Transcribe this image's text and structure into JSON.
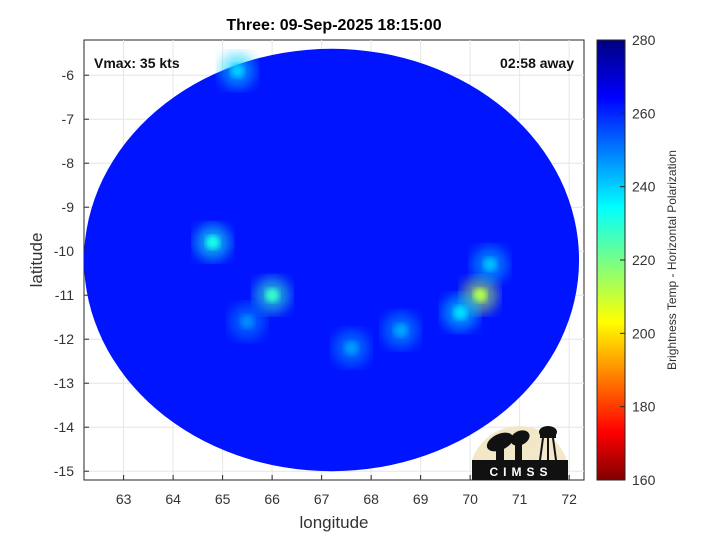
{
  "chart_data": {
    "type": "heatmap",
    "title": "Three: 09-Sep-2025 18:15:00",
    "xlabel": "longitude",
    "ylabel": "latitude",
    "xlim": [
      62.2,
      72.3
    ],
    "ylim": [
      -15.2,
      -5.2
    ],
    "xticks": [
      63,
      64,
      65,
      66,
      67,
      68,
      69,
      70,
      71,
      72
    ],
    "yticks": [
      -6,
      -7,
      -8,
      -9,
      -10,
      -11,
      -12,
      -13,
      -14,
      -15
    ],
    "grid": true,
    "annotations": {
      "vmax": "Vmax: 35 kts",
      "away": "02:58 away"
    },
    "colorbar": {
      "label": "Brightness Temp - Horizontal Polarization",
      "range": [
        160,
        280
      ],
      "ticks": [
        280,
        260,
        240,
        220,
        200,
        180,
        160
      ],
      "colormap": "jet"
    },
    "swath": {
      "center_lon": 67.2,
      "center_lat": -10.2,
      "radius_lon": 5.0,
      "radius_lat": 4.8,
      "background_temp": 262
    },
    "features": [
      {
        "lon": 64.8,
        "lat": -9.8,
        "temp": 232
      },
      {
        "lon": 66.0,
        "lat": -11.0,
        "temp": 228
      },
      {
        "lon": 70.2,
        "lat": -11.0,
        "temp": 212
      },
      {
        "lon": 69.8,
        "lat": -11.4,
        "temp": 238
      },
      {
        "lon": 70.4,
        "lat": -10.3,
        "temp": 242
      },
      {
        "lon": 68.6,
        "lat": -11.8,
        "temp": 245
      },
      {
        "lon": 67.6,
        "lat": -12.2,
        "temp": 246
      },
      {
        "lon": 65.5,
        "lat": -11.6,
        "temp": 248
      },
      {
        "lon": 65.3,
        "lat": -5.9,
        "temp": 240
      }
    ]
  },
  "logo": {
    "text": "CIMSS"
  }
}
